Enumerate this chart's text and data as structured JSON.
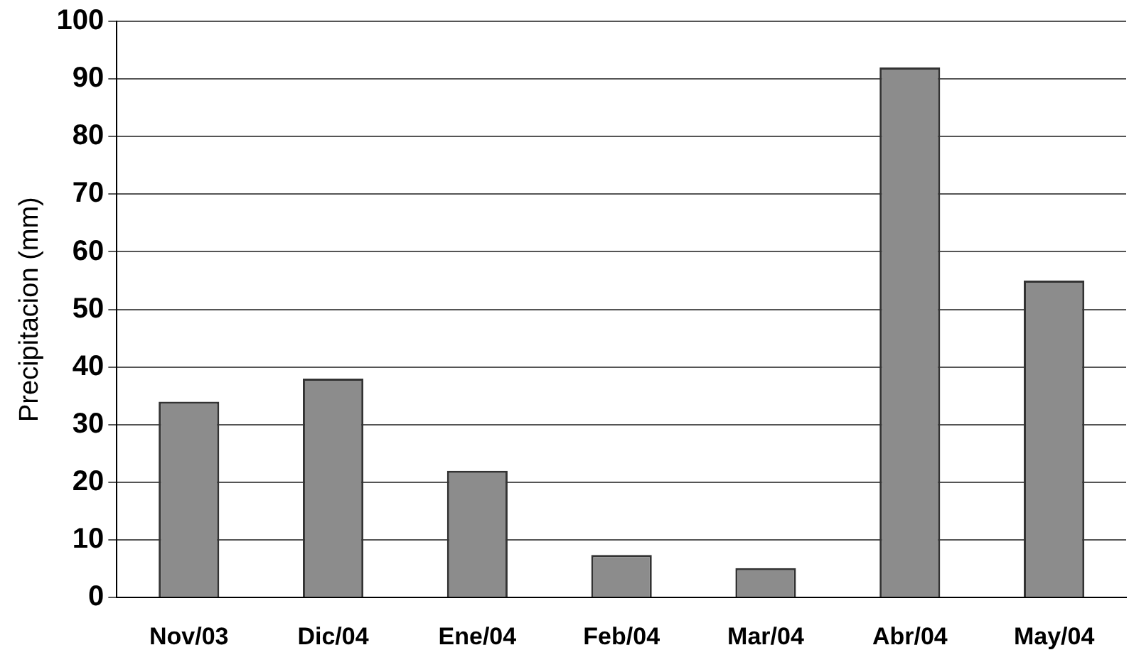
{
  "chart_data": {
    "type": "bar",
    "ylabel": "Precipitacion (mm)",
    "categories": [
      "Nov/03",
      "Dic/04",
      "Ene/04",
      "Feb/04",
      "Mar/04",
      "Abr/04",
      "May/04"
    ],
    "values": [
      34,
      38,
      22,
      7.4,
      5.1,
      92,
      55
    ],
    "color": "#8c8c8c",
    "ylim": [
      0,
      100
    ],
    "yticks": [
      0,
      10,
      20,
      30,
      40,
      50,
      60,
      70,
      80,
      90,
      100
    ],
    "grid": "y"
  }
}
